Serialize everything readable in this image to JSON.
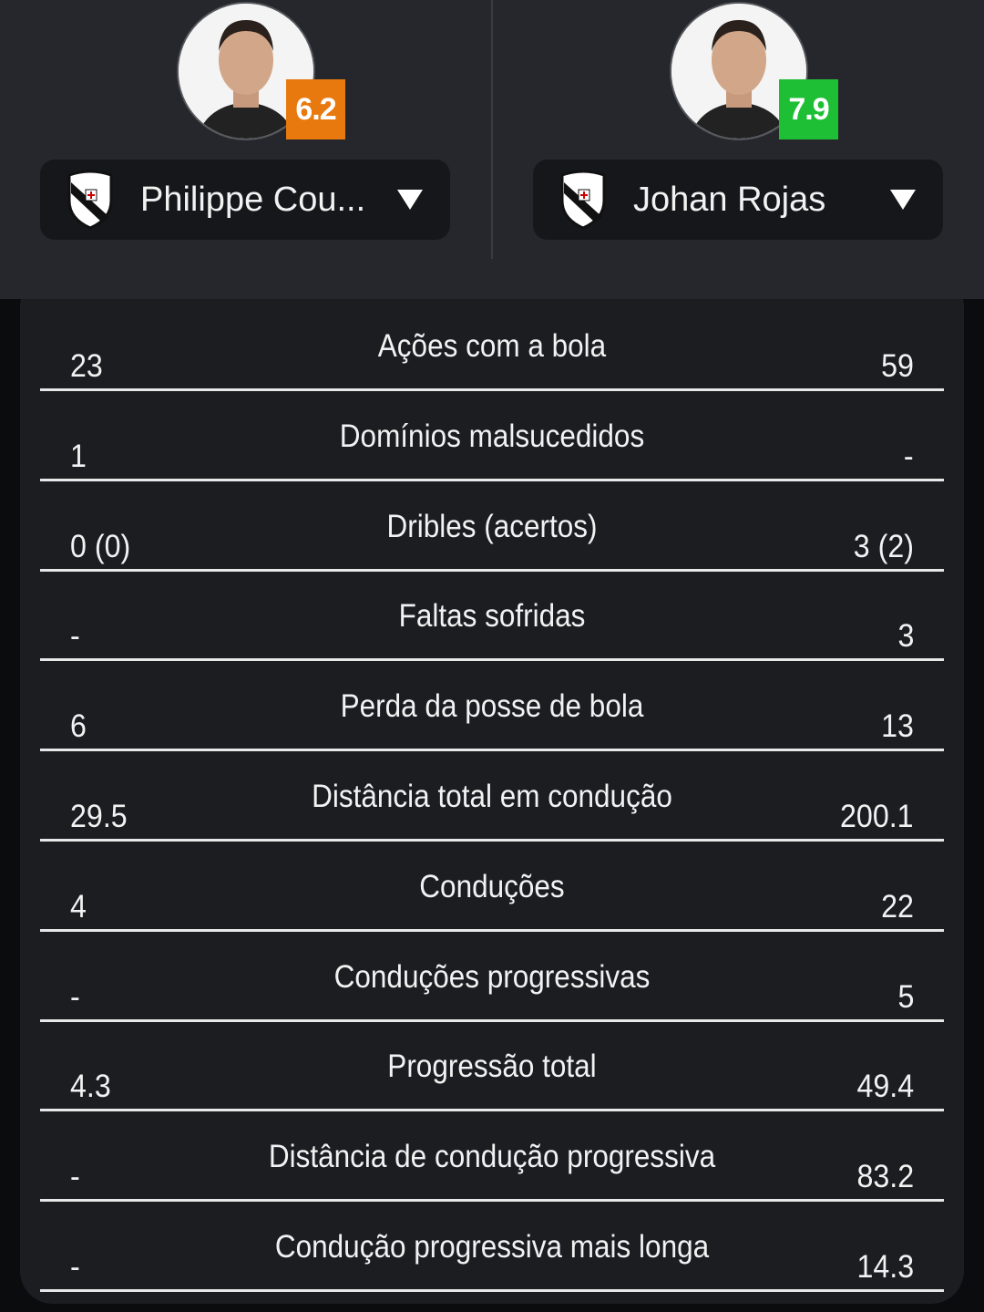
{
  "players": [
    {
      "name": "Philippe Cou...",
      "rating": "6.2",
      "rating_color": "#e8790f",
      "crest_icon": "vasco-crest-icon"
    },
    {
      "name": "Johan Rojas",
      "rating": "7.9",
      "rating_color": "#1fbf35",
      "crest_icon": "vasco-crest-icon"
    }
  ],
  "stats": [
    {
      "label": "Ações com a bola",
      "left": "23",
      "right": "59"
    },
    {
      "label": "Domínios malsucedidos",
      "left": "1",
      "right": "-"
    },
    {
      "label": "Dribles (acertos)",
      "left": "0 (0)",
      "right": "3 (2)"
    },
    {
      "label": "Faltas sofridas",
      "left": "-",
      "right": "3"
    },
    {
      "label": "Perda da posse de bola",
      "left": "6",
      "right": "13"
    },
    {
      "label": "Distância total em condução",
      "left": "29.5",
      "right": "200.1"
    },
    {
      "label": "Conduções",
      "left": "4",
      "right": "22"
    },
    {
      "label": "Conduções progressivas",
      "left": "-",
      "right": "5"
    },
    {
      "label": "Progressão total",
      "left": "4.3",
      "right": "49.4"
    },
    {
      "label": "Distância de condução progressiva",
      "left": "-",
      "right": "83.2"
    },
    {
      "label": "Condução progressiva mais longa",
      "left": "-",
      "right": "14.3"
    }
  ]
}
